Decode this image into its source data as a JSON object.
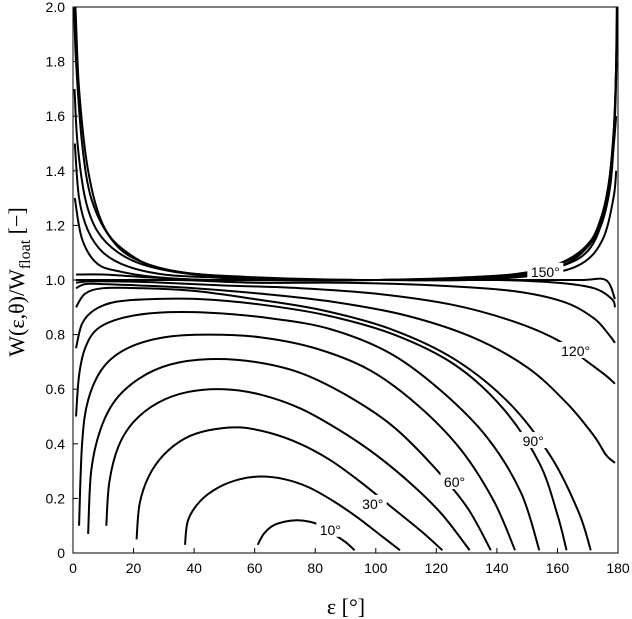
{
  "chart_data": {
    "type": "line",
    "xlabel": "ε [°]",
    "ylabel_main": "W(ε,θ)/W",
    "ylabel_sub": "float",
    "ylabel_tail": " [−]",
    "xlim": [
      0,
      180
    ],
    "ylim": [
      0,
      2.0
    ],
    "xticks": [
      0,
      20,
      40,
      60,
      80,
      100,
      120,
      140,
      160,
      180
    ],
    "yticks": [
      0,
      0.2,
      0.4,
      0.6,
      0.8,
      1.0,
      1.2,
      1.4,
      1.6,
      1.8,
      2.0
    ],
    "yticklabels": [
      "0",
      "0.2",
      "0.4",
      "0.6",
      "0.8",
      "1.0",
      "1.2",
      "1.4",
      "1.6",
      "1.8",
      "2.0"
    ],
    "grid": false,
    "series": [
      {
        "label": "10°",
        "x": [
          61,
          63,
          66,
          70,
          74,
          78,
          82,
          86,
          90,
          93
        ],
        "y": [
          0.03,
          0.07,
          0.1,
          0.115,
          0.12,
          0.115,
          0.1,
          0.07,
          0.04,
          0.01
        ]
      },
      {
        "x": [
          37,
          38,
          42,
          48,
          55,
          62,
          70,
          78,
          86,
          94,
          101,
          108
        ],
        "y": [
          0.03,
          0.12,
          0.19,
          0.24,
          0.27,
          0.28,
          0.27,
          0.24,
          0.19,
          0.13,
          0.07,
          0.01
        ]
      },
      {
        "label": "30°",
        "x": [
          21,
          22,
          25,
          30,
          37,
          45,
          55,
          65,
          75,
          85,
          95,
          105,
          115,
          122
        ],
        "y": [
          0.05,
          0.18,
          0.28,
          0.36,
          0.42,
          0.45,
          0.46,
          0.44,
          0.4,
          0.34,
          0.26,
          0.17,
          0.08,
          0.01
        ]
      },
      {
        "x": [
          11,
          12,
          15,
          20,
          28,
          38,
          50,
          62,
          75,
          88,
          100,
          112,
          122,
          131
        ],
        "y": [
          0.1,
          0.26,
          0.39,
          0.48,
          0.55,
          0.59,
          0.6,
          0.58,
          0.53,
          0.45,
          0.36,
          0.25,
          0.14,
          0.01
        ]
      },
      {
        "label": "60°",
        "x": [
          5,
          6,
          9,
          14,
          22,
          32,
          45,
          60,
          75,
          90,
          105,
          118,
          130,
          138
        ],
        "y": [
          0.07,
          0.3,
          0.45,
          0.56,
          0.64,
          0.69,
          0.71,
          0.7,
          0.66,
          0.58,
          0.47,
          0.33,
          0.17,
          0.01
        ]
      },
      {
        "x": [
          2,
          3,
          5,
          10,
          18,
          30,
          45,
          62,
          80,
          98,
          114,
          128,
          139,
          146
        ],
        "y": [
          0.1,
          0.4,
          0.56,
          0.68,
          0.75,
          0.79,
          0.8,
          0.79,
          0.75,
          0.67,
          0.54,
          0.38,
          0.19,
          0.01
        ]
      },
      {
        "label": "90°",
        "x": [
          1,
          2,
          4,
          8,
          16,
          28,
          45,
          65,
          85,
          105,
          122,
          137,
          148,
          154
        ],
        "y": [
          0.5,
          0.65,
          0.75,
          0.82,
          0.86,
          0.88,
          0.88,
          0.86,
          0.82,
          0.73,
          0.59,
          0.42,
          0.22,
          0.01
        ]
      },
      {
        "x": [
          1,
          3,
          7,
          14,
          26,
          42,
          62,
          84,
          106,
          126,
          142,
          154,
          160,
          163
        ],
        "y": [
          0.75,
          0.84,
          0.89,
          0.92,
          0.93,
          0.93,
          0.91,
          0.87,
          0.8,
          0.69,
          0.53,
          0.33,
          0.14,
          0.01
        ]
      },
      {
        "x": [
          1,
          4,
          10,
          22,
          40,
          60,
          82,
          105,
          126,
          144,
          158,
          167,
          171
        ],
        "y": [
          0.9,
          0.95,
          0.97,
          0.97,
          0.96,
          0.93,
          0.89,
          0.82,
          0.71,
          0.55,
          0.35,
          0.15,
          0.01
        ]
      },
      {
        "x": [
          1,
          4,
          10,
          22,
          40,
          62,
          86,
          110,
          132,
          150,
          163,
          172,
          176,
          179
        ],
        "y": [
          0.97,
          0.985,
          0.985,
          0.98,
          0.97,
          0.95,
          0.92,
          0.87,
          0.79,
          0.68,
          0.55,
          0.43,
          0.36,
          0.33
        ]
      },
      {
        "label": "120°",
        "x": [
          1,
          5,
          15,
          30,
          50,
          75,
          100,
          125,
          145,
          160,
          170,
          176,
          179
        ],
        "y": [
          0.99,
          0.995,
          0.995,
          0.99,
          0.98,
          0.97,
          0.95,
          0.91,
          0.85,
          0.78,
          0.7,
          0.65,
          0.62
        ]
      },
      {
        "x": [
          1,
          5,
          15,
          35,
          60,
          90,
          120,
          145,
          162,
          172,
          177,
          179
        ],
        "y": [
          1.0,
          1.0,
          1.0,
          1.0,
          0.99,
          0.99,
          0.98,
          0.96,
          0.92,
          0.86,
          0.8,
          0.77
        ]
      },
      {
        "x": [
          1,
          10,
          30,
          60,
          100,
          140,
          160,
          172,
          178,
          179
        ],
        "y": [
          1.0,
          1.0,
          1.0,
          1.0,
          1.0,
          1.0,
          0.99,
          0.97,
          0.93,
          0.9
        ]
      },
      {
        "x": [
          1,
          10,
          25,
          45,
          80,
          120,
          150,
          168,
          176,
          179
        ],
        "y": [
          1.02,
          1.02,
          1.01,
          1.0,
          1.0,
          1.0,
          1.0,
          1.0,
          1.0,
          0.93
        ]
      },
      {
        "label": "150°",
        "x": [
          0.6,
          3,
          8,
          16,
          28,
          45,
          70,
          100,
          130,
          155,
          168,
          175,
          178.5,
          179.4
        ],
        "y": [
          1.3,
          1.15,
          1.06,
          1.03,
          1.01,
          1.0,
          1.0,
          1.0,
          1.0,
          1.02,
          1.06,
          1.15,
          1.3,
          1.4
        ]
      },
      {
        "x": [
          0.6,
          2,
          5,
          10,
          18,
          30,
          45,
          70,
          100,
          130,
          152,
          165,
          172,
          176,
          178.2,
          179.4
        ],
        "y": [
          1.5,
          1.3,
          1.18,
          1.1,
          1.05,
          1.02,
          1.01,
          1.0,
          1.0,
          1.01,
          1.03,
          1.08,
          1.15,
          1.26,
          1.45,
          1.6
        ]
      },
      {
        "x": [
          0.5,
          1.5,
          4,
          8,
          15,
          25,
          40,
          65,
          100,
          135,
          155,
          167,
          174,
          177.5,
          179.0,
          179.5
        ],
        "y": [
          1.7,
          1.5,
          1.3,
          1.18,
          1.1,
          1.05,
          1.02,
          1.0,
          1.0,
          1.01,
          1.04,
          1.1,
          1.2,
          1.35,
          1.6,
          1.8
        ]
      },
      {
        "x": [
          0.4,
          1.0,
          3,
          6,
          12,
          20,
          35,
          60,
          100,
          138,
          158,
          169,
          175,
          178,
          179.2,
          179.6
        ],
        "y": [
          2.0,
          1.8,
          1.5,
          1.3,
          1.16,
          1.08,
          1.03,
          1.01,
          1.0,
          1.01,
          1.04,
          1.11,
          1.25,
          1.45,
          1.7,
          2.0
        ]
      },
      {
        "x": [
          0.3,
          0.8,
          2,
          5,
          10,
          18,
          30,
          55,
          100,
          142,
          161,
          171,
          176,
          178.6,
          179.5,
          179.7
        ],
        "y": [
          2.0,
          2.0,
          1.7,
          1.4,
          1.2,
          1.1,
          1.04,
          1.01,
          1.0,
          1.01,
          1.05,
          1.12,
          1.28,
          1.55,
          1.85,
          2.0
        ]
      }
    ],
    "labels": [
      {
        "text": "10°",
        "x": 85,
        "y": 0.085
      },
      {
        "text": "30°",
        "x": 99,
        "y": 0.18
      },
      {
        "text": "60°",
        "x": 126,
        "y": 0.26
      },
      {
        "text": "90°",
        "x": 152,
        "y": 0.41
      },
      {
        "text": "120°",
        "x": 166,
        "y": 0.74
      },
      {
        "text": "150°",
        "x": 156,
        "y": 1.03
      }
    ]
  }
}
